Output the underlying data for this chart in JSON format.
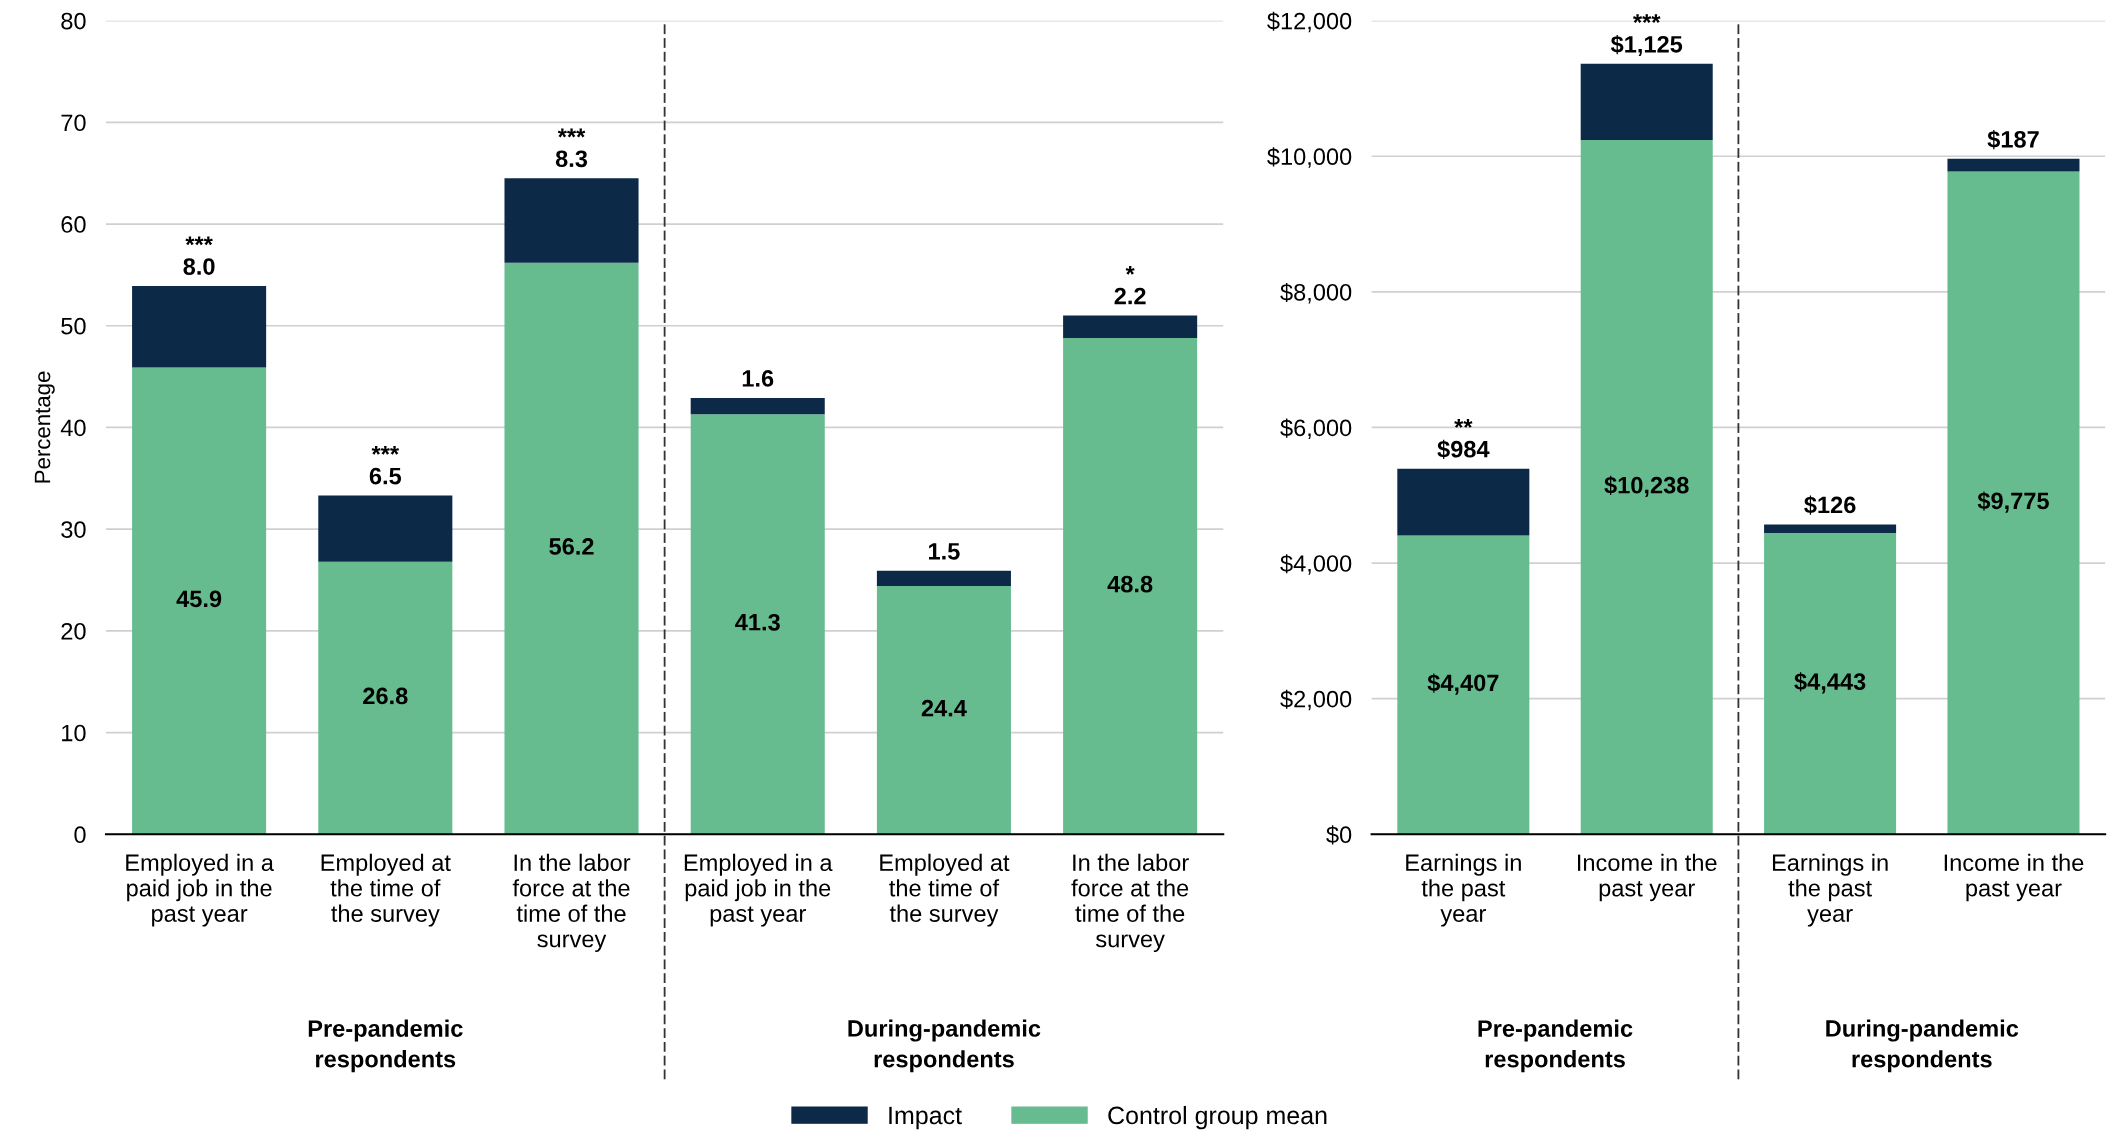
{
  "chart_data": [
    {
      "type": "bar",
      "stacked": true,
      "ylabel": "Percentage",
      "categories": [
        "Employed in a\npaid job in the\npast year",
        "Employed at\nthe time of\nthe survey",
        "In the labor\nforce at the\ntime of the\nsurvey",
        "Employed in a\npaid job in the\npast year",
        "Employed at\nthe time of\nthe survey",
        "In the labor\nforce at the\ntime of the\nsurvey"
      ],
      "series": [
        {
          "name": "Control group mean",
          "color": "#66bb8f",
          "values": [
            45.9,
            26.8,
            56.2,
            41.3,
            24.4,
            48.8
          ],
          "value_labels": [
            "45.9",
            "26.8",
            "56.2",
            "41.3",
            "24.4",
            "48.8"
          ]
        },
        {
          "name": "Impact",
          "color": "#0c2a48",
          "values": [
            8.0,
            6.5,
            8.3,
            1.6,
            1.5,
            2.2
          ],
          "value_labels": [
            "***\n8.0",
            "***\n6.5",
            "***\n8.3",
            "1.6",
            "1.5",
            "*\n2.2"
          ]
        }
      ],
      "ylim": [
        0,
        80
      ],
      "yticks": [
        0,
        10,
        20,
        30,
        40,
        50,
        60,
        70,
        80
      ],
      "grid": "y",
      "legend": "bottom",
      "annotations": [
        "Pre-pandemic\nrespondents",
        "During-pandemic\nrespondents"
      ]
    },
    {
      "type": "bar",
      "stacked": true,
      "categories": [
        "Earnings in\nthe past\nyear",
        "Income in the\npast year",
        "Earnings in\nthe past\nyear",
        "Income in the\npast year"
      ],
      "series": [
        {
          "name": "Control group mean",
          "color": "#66bb8f",
          "values": [
            4407,
            10238,
            4443,
            9775
          ],
          "value_labels": [
            "$4,407",
            "$10,238",
            "$4,443",
            "$9,775"
          ]
        },
        {
          "name": "Impact",
          "color": "#0c2a48",
          "values": [
            984,
            1125,
            126,
            187
          ],
          "value_labels": [
            "**\n$984",
            "***\n$1,125",
            "$126",
            "$187"
          ]
        }
      ],
      "ylim": [
        0,
        12000
      ],
      "yticks": [
        {
          "value": 0,
          "label": "$0"
        },
        {
          "value": 2000,
          "label": "$2,000"
        },
        {
          "value": 4000,
          "label": "$4,000"
        },
        {
          "value": 6000,
          "label": "$6,000"
        },
        {
          "value": 8000,
          "label": "$8,000"
        },
        {
          "value": 10000,
          "label": "$10,000"
        },
        {
          "value": 12000,
          "label": "$12,000"
        }
      ],
      "grid": "y",
      "legend": "bottom",
      "annotations": [
        "Pre-pandemic\nrespondents",
        "During-pandemic\nrespondents"
      ]
    }
  ]
}
